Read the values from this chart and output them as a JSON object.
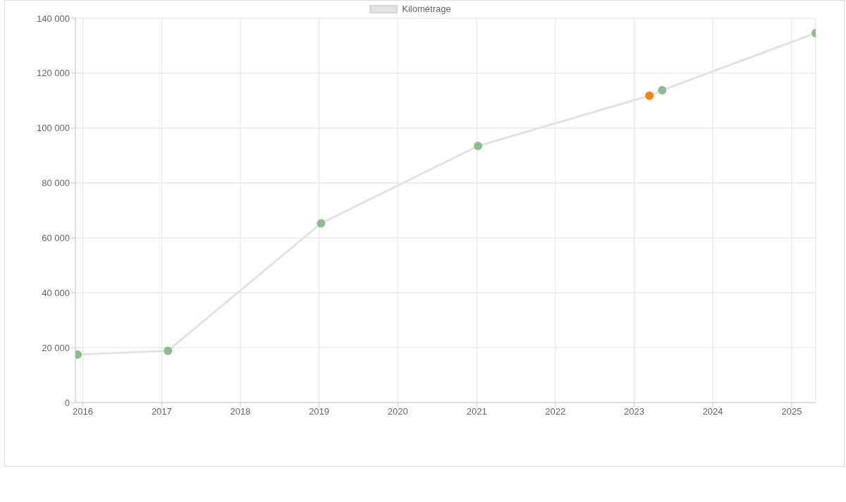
{
  "chart_data": {
    "type": "line",
    "x": [
      "2015-12-08",
      "2017-01-30",
      "2019-01-10",
      "2021-01-07",
      "2023-03-13",
      "2023-05-11",
      "2025-04-22"
    ],
    "series": [
      {
        "name": "Kilométrage",
        "color": "#e3e3e3",
        "values": [
          17500,
          18900,
          65300,
          93500,
          111800,
          113800,
          134600
        ],
        "colors": [
          "#8fbc8f",
          "#8fbc8f",
          "#8fbc8f",
          "#8fbc8f",
          "#f5870a",
          "#8fbc8f",
          "#8fbc8f"
        ]
      }
    ],
    "xlim": [
      "2015-11-28",
      "2025-04-22"
    ],
    "xticks": [
      "2016",
      "2017",
      "2018",
      "2019",
      "2020",
      "2021",
      "2022",
      "2023",
      "2024",
      "2025"
    ],
    "ylim": [
      0,
      140000
    ],
    "yticks": [
      0,
      {
        "value": 20000,
        "label": "20 000"
      },
      {
        "value": 40000,
        "label": "40 000"
      },
      {
        "value": 60000,
        "label": "60 000"
      },
      {
        "value": 80000,
        "label": "80 000"
      },
      {
        "value": 100000,
        "label": "100 000"
      },
      {
        "value": 120000,
        "label": "120 000"
      },
      {
        "value": 140000,
        "label": "140 000"
      }
    ],
    "grid": true,
    "legend": "top",
    "marker": "circle",
    "line_style": "solid"
  }
}
